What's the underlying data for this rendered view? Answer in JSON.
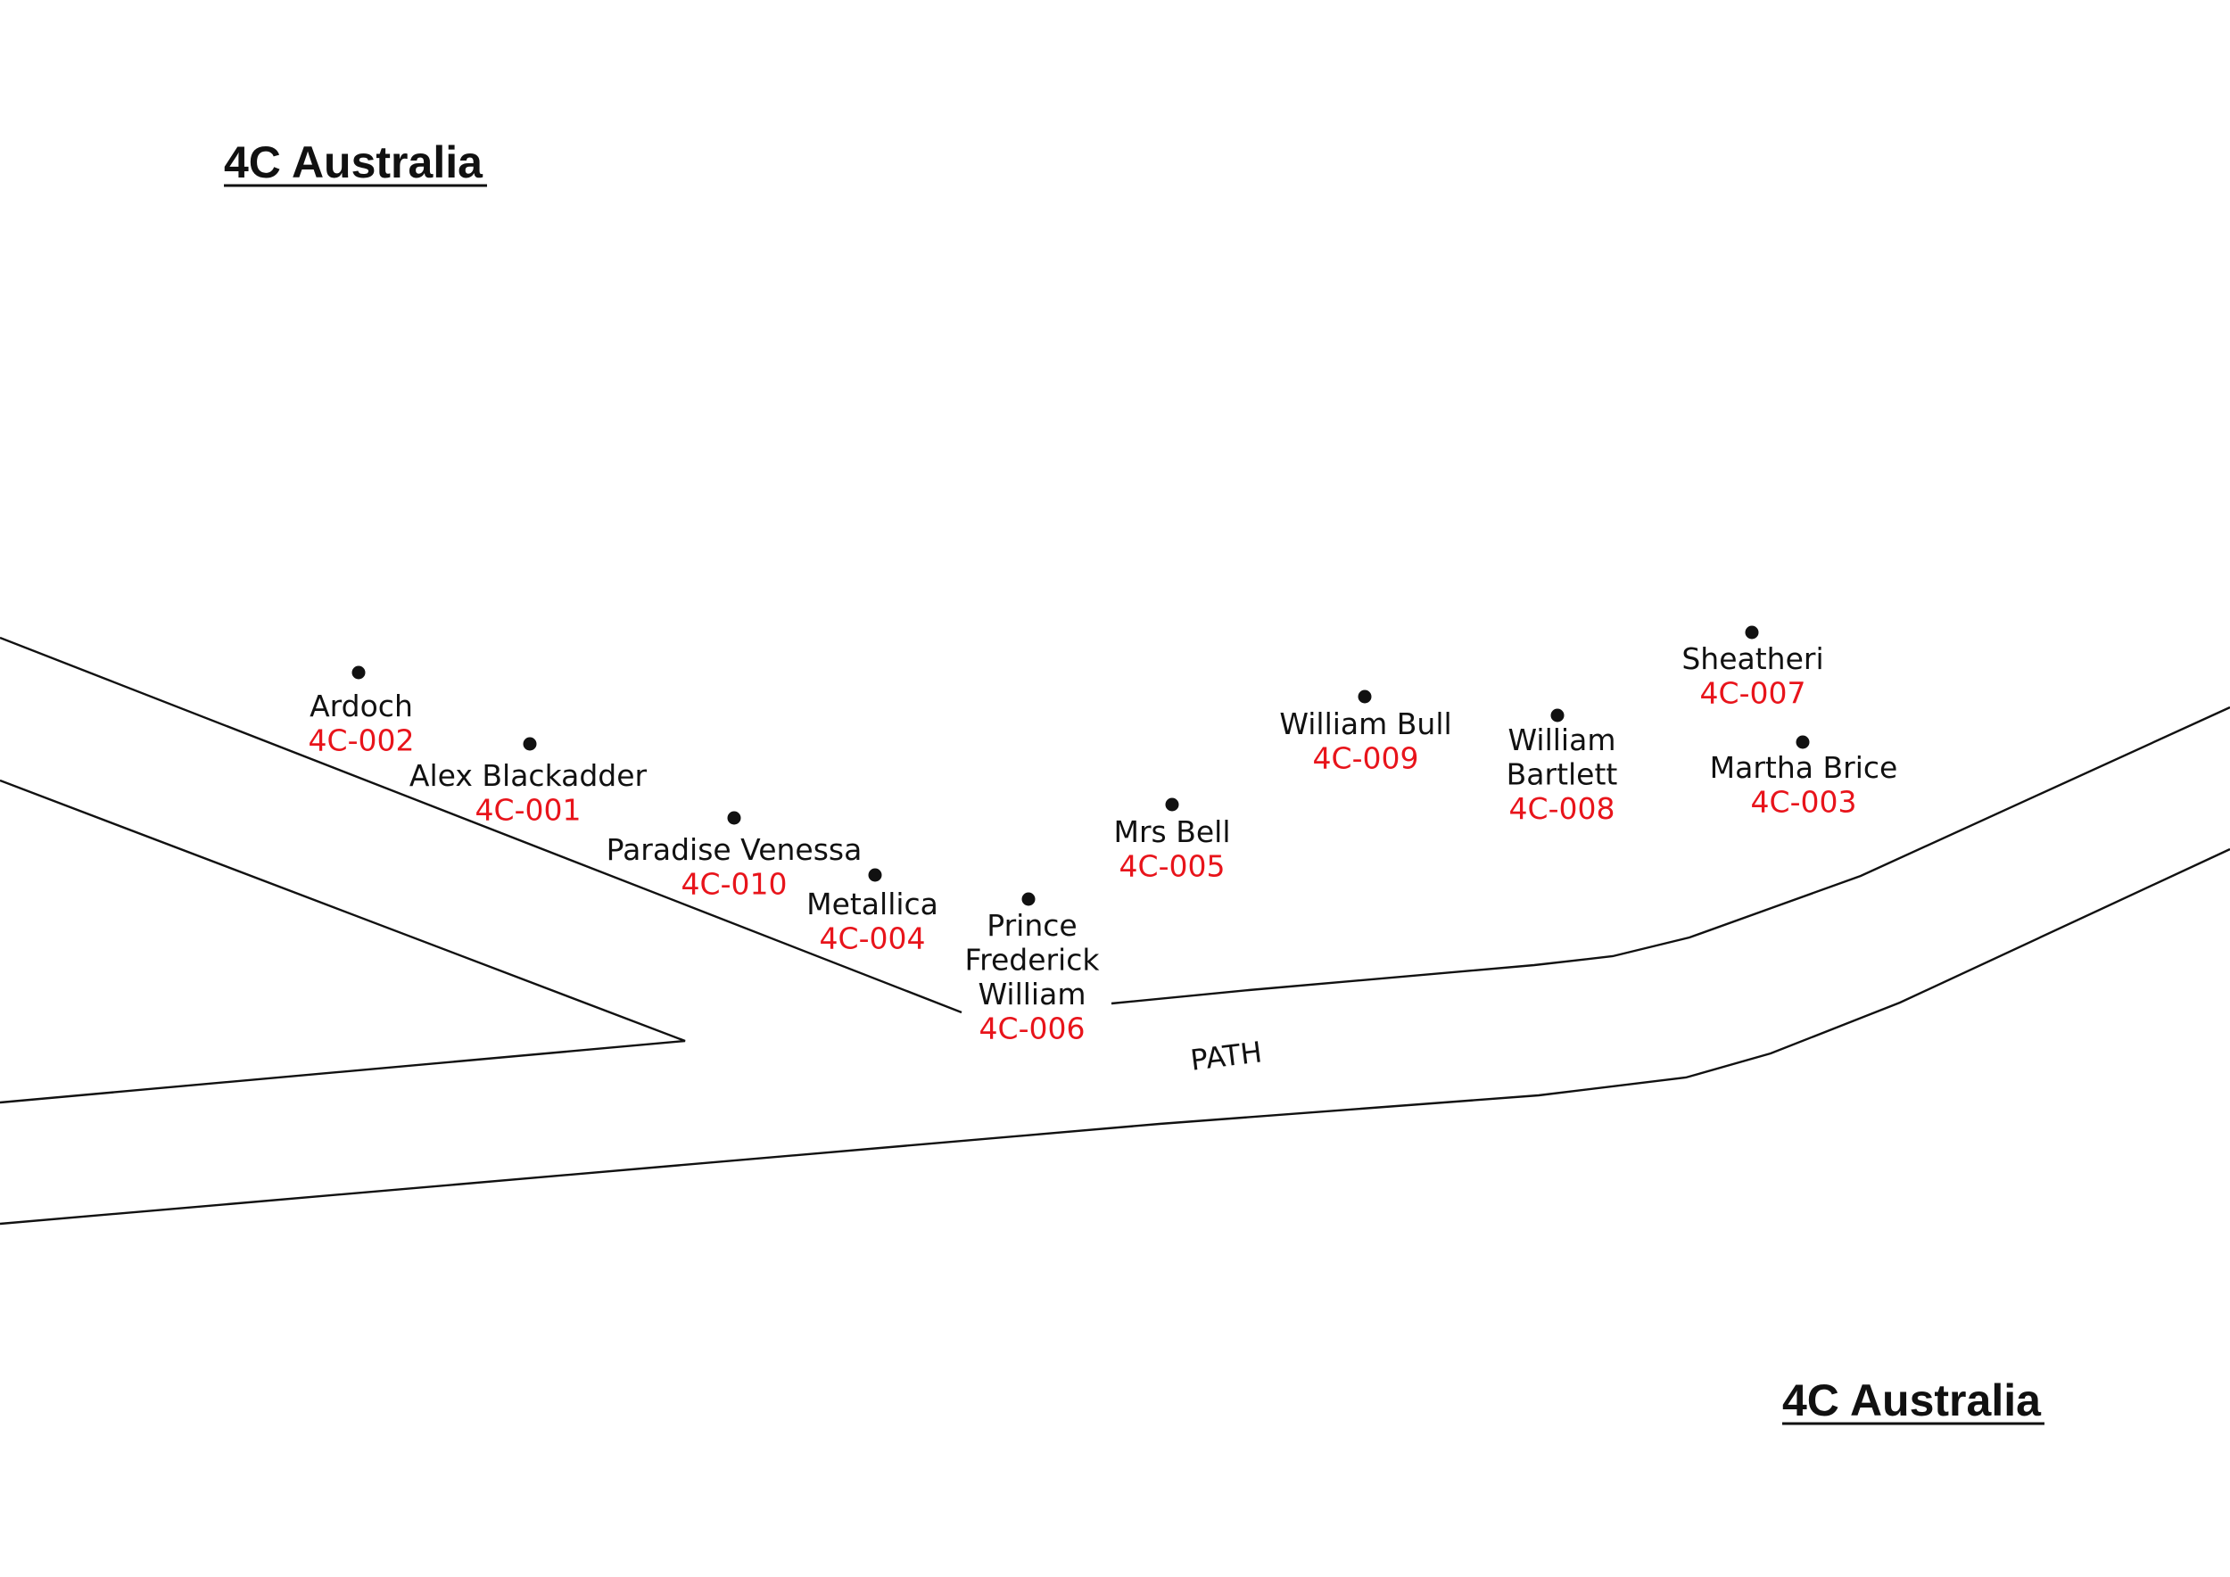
{
  "headings": {
    "top_left": "4C  Australia",
    "bottom_right": "4C  Australia"
  },
  "path_label": "PATH",
  "plots": [
    {
      "name_lines": [
        "Ardoch"
      ],
      "code": "4C-002"
    },
    {
      "name_lines": [
        "Alex Blackadder"
      ],
      "code": "4C-001"
    },
    {
      "name_lines": [
        "Paradise Venessa"
      ],
      "code": "4C-010"
    },
    {
      "name_lines": [
        "Metallica"
      ],
      "code": "4C-004"
    },
    {
      "name_lines": [
        "Prince",
        "Frederick",
        "William"
      ],
      "code": "4C-006"
    },
    {
      "name_lines": [
        "Mrs Bell"
      ],
      "code": "4C-005"
    },
    {
      "name_lines": [
        "William Bull"
      ],
      "code": "4C-009"
    },
    {
      "name_lines": [
        "William",
        "Bartlett"
      ],
      "code": "4C-008"
    },
    {
      "name_lines": [
        "Sheatheri"
      ],
      "code": "4C-007"
    },
    {
      "name_lines": [
        "Martha Brice"
      ],
      "code": "4C-003"
    }
  ],
  "colors": {
    "code_text": "#e8141b",
    "ink": "#111111",
    "background": "#ffffff"
  }
}
